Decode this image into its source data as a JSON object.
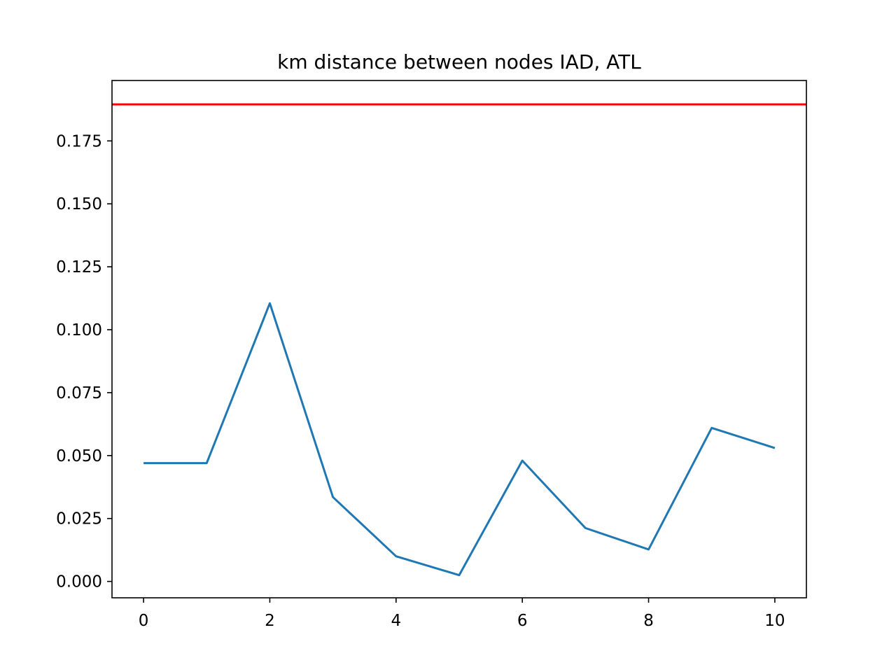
{
  "chart_data": {
    "type": "line",
    "title": "km distance between nodes IAD, ATL",
    "xlabel": "",
    "ylabel": "",
    "xlim": [
      -0.5,
      10.5
    ],
    "ylim": [
      -0.0065,
      0.199
    ],
    "x_ticks": [
      0,
      2,
      4,
      6,
      8,
      10
    ],
    "x_tick_labels": [
      "0",
      "2",
      "4",
      "6",
      "8",
      "10"
    ],
    "y_ticks": [
      0.0,
      0.025,
      0.05,
      0.075,
      0.1,
      0.125,
      0.15,
      0.175
    ],
    "y_tick_labels": [
      "0.000",
      "0.025",
      "0.050",
      "0.075",
      "0.100",
      "0.125",
      "0.150",
      "0.175"
    ],
    "grid": false,
    "series": [
      {
        "color": "#1f77b4",
        "x": [
          0,
          1,
          2,
          3,
          4,
          5,
          6,
          7,
          8,
          9,
          10
        ],
        "y": [
          0.047,
          0.047,
          0.1105,
          0.0335,
          0.01,
          0.0025,
          0.048,
          0.0212,
          0.0127,
          0.061,
          0.053
        ]
      }
    ],
    "hlines": [
      {
        "y": 0.1895,
        "color": "#ff0000"
      }
    ]
  }
}
